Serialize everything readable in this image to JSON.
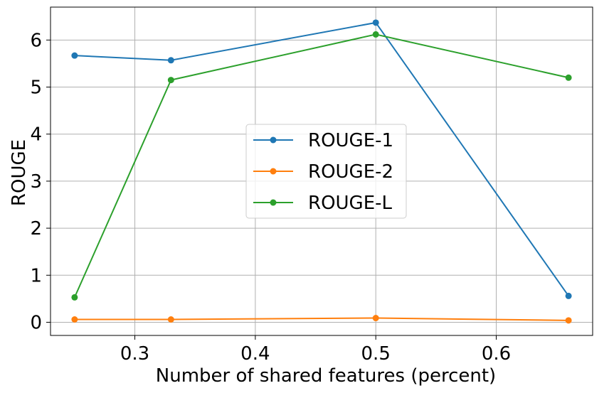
{
  "chart_data": {
    "type": "line",
    "title": "",
    "xlabel": "Number of shared features (percent)",
    "ylabel": "ROUGE",
    "x": [
      0.25,
      0.33,
      0.5,
      0.66
    ],
    "xlim": [
      0.23,
      0.68
    ],
    "ylim": [
      -0.28,
      6.7
    ],
    "xticks": [
      0.3,
      0.4,
      0.5,
      0.6
    ],
    "xtick_labels": [
      "0.3",
      "0.4",
      "0.5",
      "0.6"
    ],
    "yticks": [
      0,
      1,
      2,
      3,
      4,
      5,
      6
    ],
    "ytick_labels": [
      "0",
      "1",
      "2",
      "3",
      "4",
      "5",
      "6"
    ],
    "grid": true,
    "legend_position": "center",
    "series": [
      {
        "name": "ROUGE-1",
        "color": "#1f77b4",
        "values": [
          5.67,
          5.57,
          6.37,
          0.56
        ]
      },
      {
        "name": "ROUGE-2",
        "color": "#ff7f0e",
        "values": [
          0.06,
          0.06,
          0.09,
          0.04
        ]
      },
      {
        "name": "ROUGE-L",
        "color": "#2ca02c",
        "values": [
          0.53,
          5.15,
          6.12,
          5.2
        ]
      }
    ]
  }
}
